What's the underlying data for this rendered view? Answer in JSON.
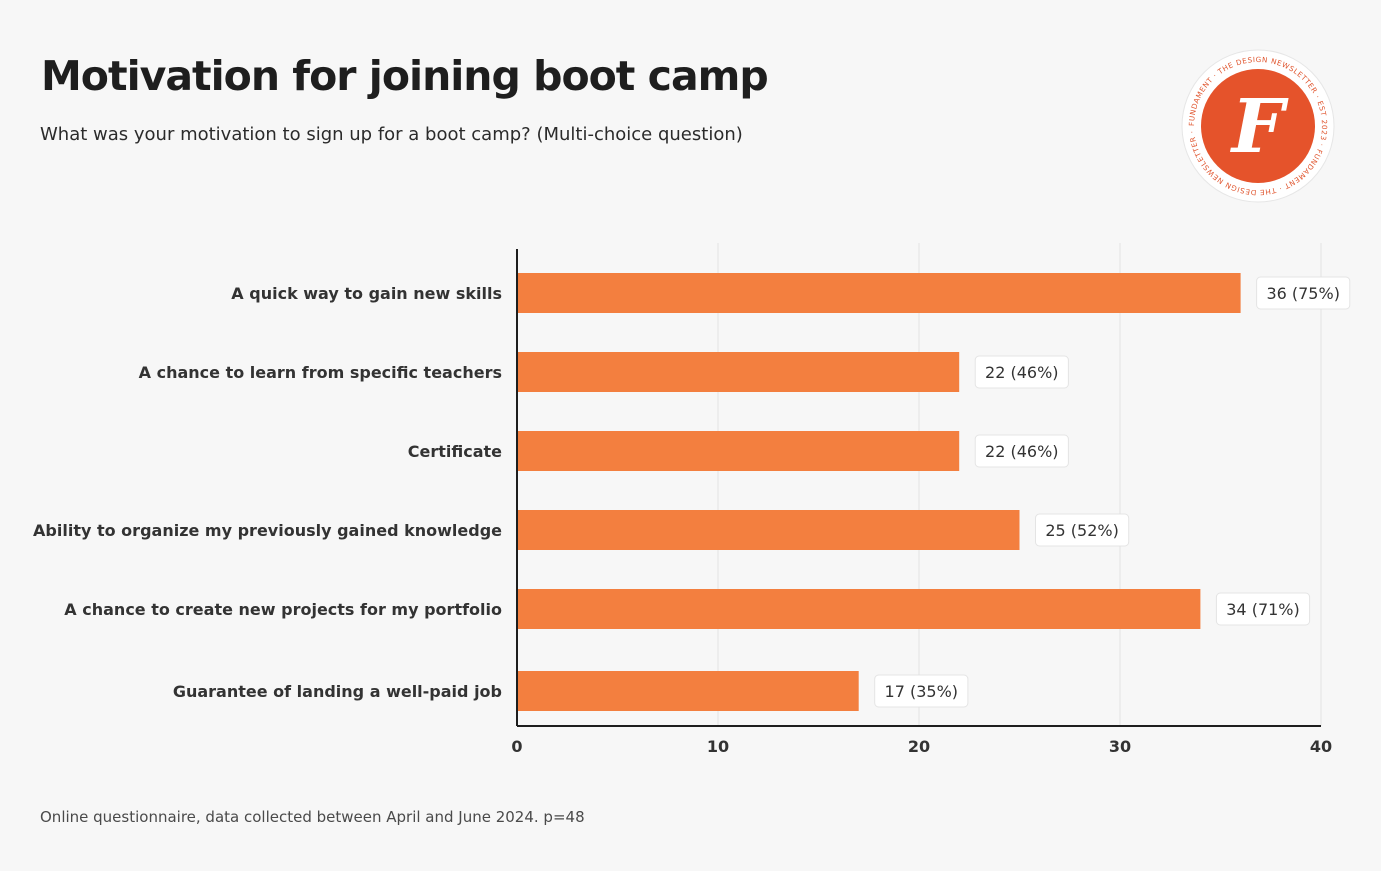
{
  "header": {
    "title": "Motivation for joining boot camp",
    "subtitle": "What was your motivation to sign up for a boot camp? (Multi-choice question)"
  },
  "footer": {
    "note": "Online questionnaire, data collected between April and June 2024. p=48"
  },
  "logo": {
    "letter": "F",
    "ring_text": "FUNDAMENT · THE DESIGN NEWSLETTER · EST 2023 · FUNDAMENT · THE DESIGN NEWSLETTER · EST 2023 ·",
    "colors": {
      "fill": "#e5532b",
      "ring": "#ffffff",
      "text": "#e0552e"
    }
  },
  "chart_data": {
    "type": "bar",
    "orientation": "horizontal",
    "categories": [
      "A quick way to gain new skills",
      "A chance to learn from specific teachers",
      "Certificate",
      "Ability to organize my previously gained knowledge",
      "A chance to create new projects for my portfolio",
      "Guarantee of landing a well-paid job"
    ],
    "values": [
      36,
      22,
      22,
      25,
      34,
      17
    ],
    "value_labels": [
      "36 (75%)",
      "22 (46%)",
      "22 (46%)",
      "25 (52%)",
      "34 (71%)",
      "17 (35%)"
    ],
    "xlim": [
      0,
      40
    ],
    "xticks": [
      0,
      10,
      20,
      30,
      40
    ],
    "grid": "vertical",
    "bar_color": "#f37f3f"
  }
}
